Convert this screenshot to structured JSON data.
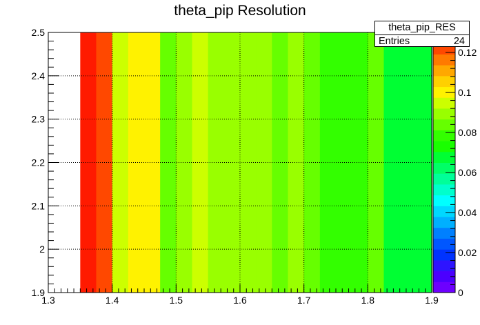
{
  "title": "theta_pip Resolution",
  "stats": {
    "name": "theta_pip_RES",
    "entries_label": "Entries",
    "entries_value": "24"
  },
  "chart_data": {
    "type": "heatmap",
    "title": "theta_pip Resolution",
    "xlabel": "",
    "ylabel": "",
    "xlim": [
      1.3,
      1.9
    ],
    "ylim": [
      1.9,
      2.5
    ],
    "zlim": [
      0,
      0.13
    ],
    "x_ticks": [
      "1.3",
      "1.4",
      "1.5",
      "1.6",
      "1.7",
      "1.8",
      "1.9"
    ],
    "y_ticks": [
      "1.9",
      "2",
      "2.1",
      "2.2",
      "2.3",
      "2.4",
      "2.5"
    ],
    "z_ticks": [
      "0",
      "0.02",
      "0.04",
      "0.06",
      "0.08",
      "0.1",
      "0.12"
    ],
    "grid": true,
    "y_bin": [
      1.9,
      2.5
    ],
    "bins": [
      {
        "x0": 1.35,
        "x1": 1.375,
        "z": 0.128
      },
      {
        "x0": 1.375,
        "x1": 1.4,
        "z": 0.122
      },
      {
        "x0": 1.4,
        "x1": 1.425,
        "z": 0.093
      },
      {
        "x0": 1.425,
        "x1": 1.45,
        "z": 0.101
      },
      {
        "x0": 1.45,
        "x1": 1.475,
        "z": 0.1
      },
      {
        "x0": 1.475,
        "x1": 1.5,
        "z": 0.086
      },
      {
        "x0": 1.5,
        "x1": 1.525,
        "z": 0.087
      },
      {
        "x0": 1.525,
        "x1": 1.55,
        "z": 0.097
      },
      {
        "x0": 1.55,
        "x1": 1.575,
        "z": 0.091
      },
      {
        "x0": 1.575,
        "x1": 1.6,
        "z": 0.09
      },
      {
        "x0": 1.6,
        "x1": 1.625,
        "z": 0.09
      },
      {
        "x0": 1.625,
        "x1": 1.65,
        "z": 0.09
      },
      {
        "x0": 1.65,
        "x1": 1.675,
        "z": 0.085
      },
      {
        "x0": 1.675,
        "x1": 1.7,
        "z": 0.09
      },
      {
        "x0": 1.7,
        "x1": 1.725,
        "z": 0.083
      },
      {
        "x0": 1.725,
        "x1": 1.75,
        "z": 0.077
      },
      {
        "x0": 1.75,
        "x1": 1.775,
        "z": 0.076
      },
      {
        "x0": 1.775,
        "x1": 1.8,
        "z": 0.08
      },
      {
        "x0": 1.8,
        "x1": 1.825,
        "z": 0.082
      },
      {
        "x0": 1.825,
        "x1": 1.85,
        "z": 0.069
      },
      {
        "x0": 1.85,
        "x1": 1.875,
        "z": 0.069
      },
      {
        "x0": 1.875,
        "x1": 1.9,
        "z": 0.069
      }
    ],
    "palette": [
      "#6d00ff",
      "#4b00ff",
      "#2e14ff",
      "#0033ff",
      "#0057ff",
      "#0080ff",
      "#00b0ff",
      "#00d8ff",
      "#00ffff",
      "#00ffcc",
      "#00ff99",
      "#00ff66",
      "#00ff33",
      "#19ff00",
      "#33ff00",
      "#66ff00",
      "#99ff00",
      "#ccff00",
      "#fff200",
      "#ffd000",
      "#ffa800",
      "#ff7a00",
      "#ff4800",
      "#ff1a00"
    ]
  }
}
